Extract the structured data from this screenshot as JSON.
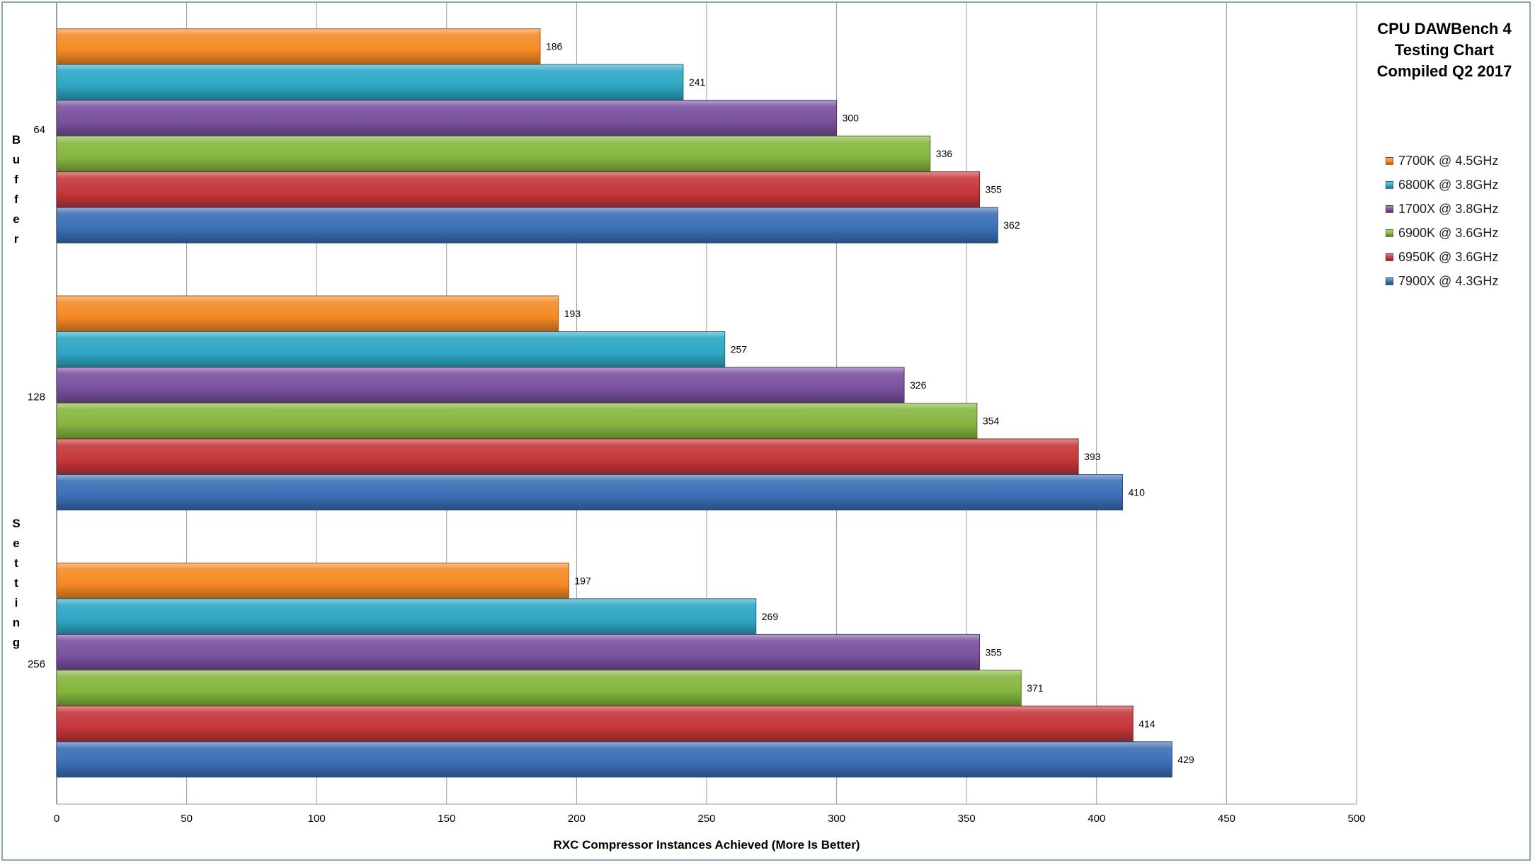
{
  "chart_data": {
    "type": "bar",
    "orientation": "horizontal",
    "title": [
      "CPU DAWBench 4",
      "Testing Chart",
      "Compiled Q2 2017"
    ],
    "xlabel": "RXC Compressor Instances Achieved (More Is Better)",
    "ylabel": "Buffer Setting",
    "xlim": [
      0,
      500
    ],
    "xticks": [
      0,
      50,
      100,
      150,
      200,
      250,
      300,
      350,
      400,
      450,
      500
    ],
    "categories": [
      "64",
      "128",
      "256"
    ],
    "grid": true,
    "legend_position": "right",
    "series": [
      {
        "name": "7700K @ 4.5GHz",
        "color": "#f58a25",
        "values": [
          186,
          193,
          197
        ]
      },
      {
        "name": "6800K @ 3.8GHz",
        "color": "#2ea7c4",
        "values": [
          241,
          257,
          269
        ]
      },
      {
        "name": "1700X @ 3.8GHz",
        "color": "#7a519e",
        "values": [
          300,
          326,
          355
        ]
      },
      {
        "name": "6900K @ 3.6GHz",
        "color": "#86b63f",
        "values": [
          336,
          354,
          371
        ]
      },
      {
        "name": "6950K @ 3.6GHz",
        "color": "#c5373a",
        "values": [
          355,
          393,
          414
        ]
      },
      {
        "name": "7900X @ 4.3GHz",
        "color": "#3b6fb6",
        "values": [
          362,
          410,
          429
        ]
      }
    ]
  }
}
